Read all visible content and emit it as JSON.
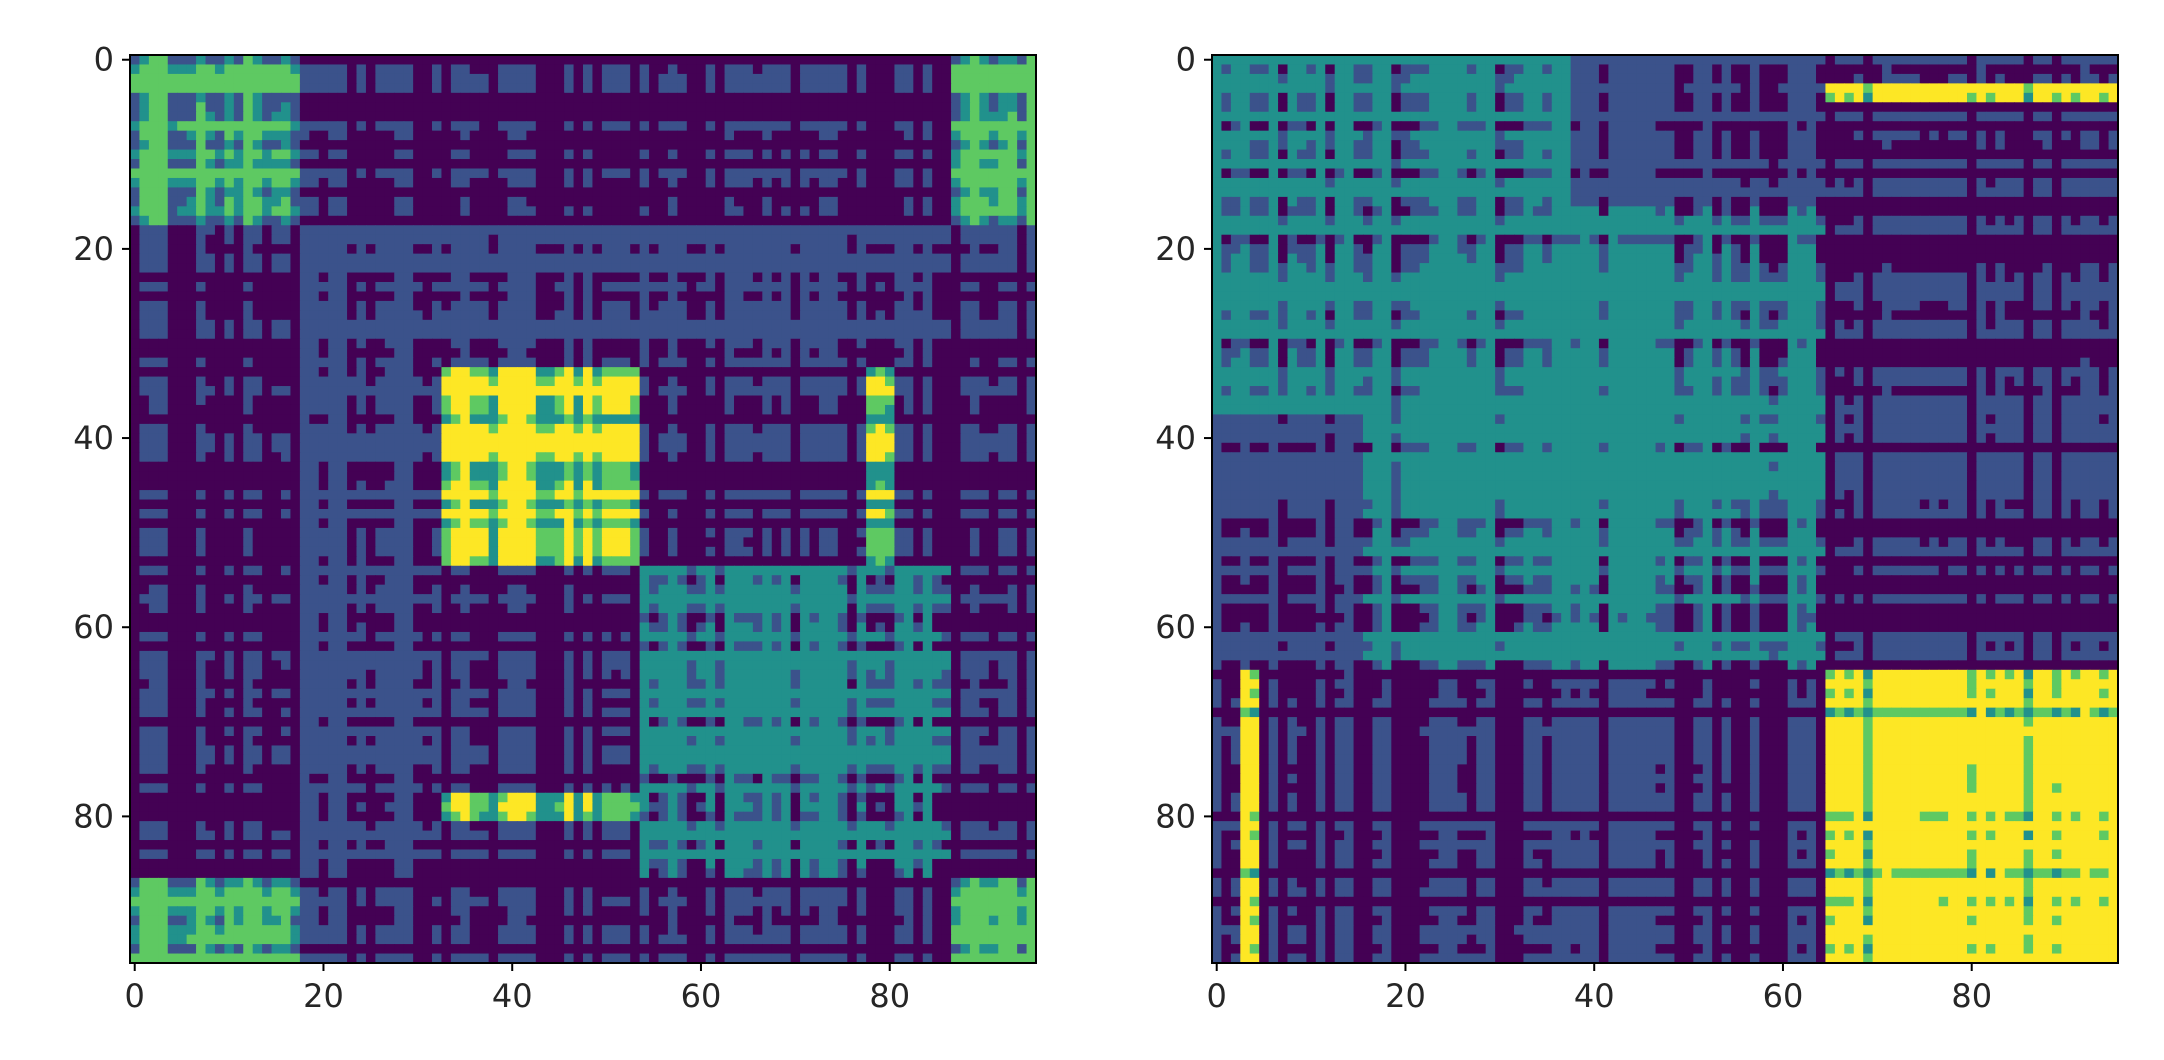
{
  "chart_data": [
    {
      "type": "heatmap",
      "title": "",
      "xlabel": "",
      "ylabel": "",
      "size": 96,
      "xlim": [
        -0.5,
        95.5
      ],
      "ylim": [
        95.5,
        -0.5
      ],
      "x_ticks": [
        0,
        20,
        40,
        60,
        80
      ],
      "y_ticks": [
        0,
        20,
        40,
        60,
        80
      ],
      "colormap": [
        "#440154",
        "#3b528b",
        "#21918c",
        "#5ec962",
        "#fde725"
      ],
      "grid": false,
      "levels": 5,
      "blocks": [
        {
          "rows": [
            0,
            17
          ],
          "cols": [
            0,
            17
          ],
          "value": 0.8
        },
        {
          "rows": [
            6,
            12
          ],
          "cols": [
            6,
            12
          ],
          "value": 0.85
        },
        {
          "rows": [
            13,
            17
          ],
          "cols": [
            13,
            17
          ],
          "value": 0.75
        },
        {
          "rows": [
            0,
            17
          ],
          "cols": [
            87,
            95
          ],
          "value": 0.75
        },
        {
          "rows": [
            87,
            95
          ],
          "cols": [
            0,
            17
          ],
          "value": 0.75
        },
        {
          "rows": [
            87,
            95
          ],
          "cols": [
            87,
            95
          ],
          "value": 0.8
        },
        {
          "rows": [
            33,
            53
          ],
          "cols": [
            33,
            53
          ],
          "value": 0.95
        },
        {
          "rows": [
            33,
            53
          ],
          "cols": [
            78,
            80
          ],
          "value": 0.95
        },
        {
          "rows": [
            78,
            80
          ],
          "cols": [
            33,
            53
          ],
          "value": 0.95
        },
        {
          "rows": [
            18,
            86
          ],
          "cols": [
            18,
            32
          ],
          "value": 0.35
        },
        {
          "rows": [
            18,
            32
          ],
          "cols": [
            18,
            86
          ],
          "value": 0.35
        },
        {
          "rows": [
            54,
            86
          ],
          "cols": [
            54,
            86
          ],
          "value": 0.45
        }
      ]
    },
    {
      "type": "heatmap",
      "title": "",
      "xlabel": "",
      "ylabel": "",
      "size": 96,
      "xlim": [
        -0.5,
        95.5
      ],
      "ylim": [
        95.5,
        -0.5
      ],
      "x_ticks": [
        0,
        20,
        40,
        60,
        80
      ],
      "y_ticks": [
        0,
        20,
        40,
        60,
        80
      ],
      "colormap": [
        "#440154",
        "#3b528b",
        "#21918c",
        "#5ec962",
        "#fde725"
      ],
      "grid": false,
      "levels": 5,
      "blocks": [
        {
          "rows": [
            0,
            37
          ],
          "cols": [
            0,
            37
          ],
          "value": 0.5
        },
        {
          "rows": [
            0,
            37
          ],
          "cols": [
            38,
            64
          ],
          "value": 0.3
        },
        {
          "rows": [
            38,
            64
          ],
          "cols": [
            0,
            37
          ],
          "value": 0.3
        },
        {
          "rows": [
            16,
            64
          ],
          "cols": [
            38,
            64
          ],
          "value": 0.5
        },
        {
          "rows": [
            65,
            95
          ],
          "cols": [
            0,
            64
          ],
          "value": 0.0
        },
        {
          "rows": [
            0,
            64
          ],
          "cols": [
            65,
            95
          ],
          "value": 0.0
        },
        {
          "rows": [
            65,
            95
          ],
          "cols": [
            65,
            95
          ],
          "value": 0.9
        },
        {
          "rows": [
            3,
            4
          ],
          "cols": [
            65,
            95
          ],
          "value": 0.95
        },
        {
          "rows": [
            65,
            95
          ],
          "cols": [
            3,
            4
          ],
          "value": 0.95
        }
      ]
    }
  ]
}
